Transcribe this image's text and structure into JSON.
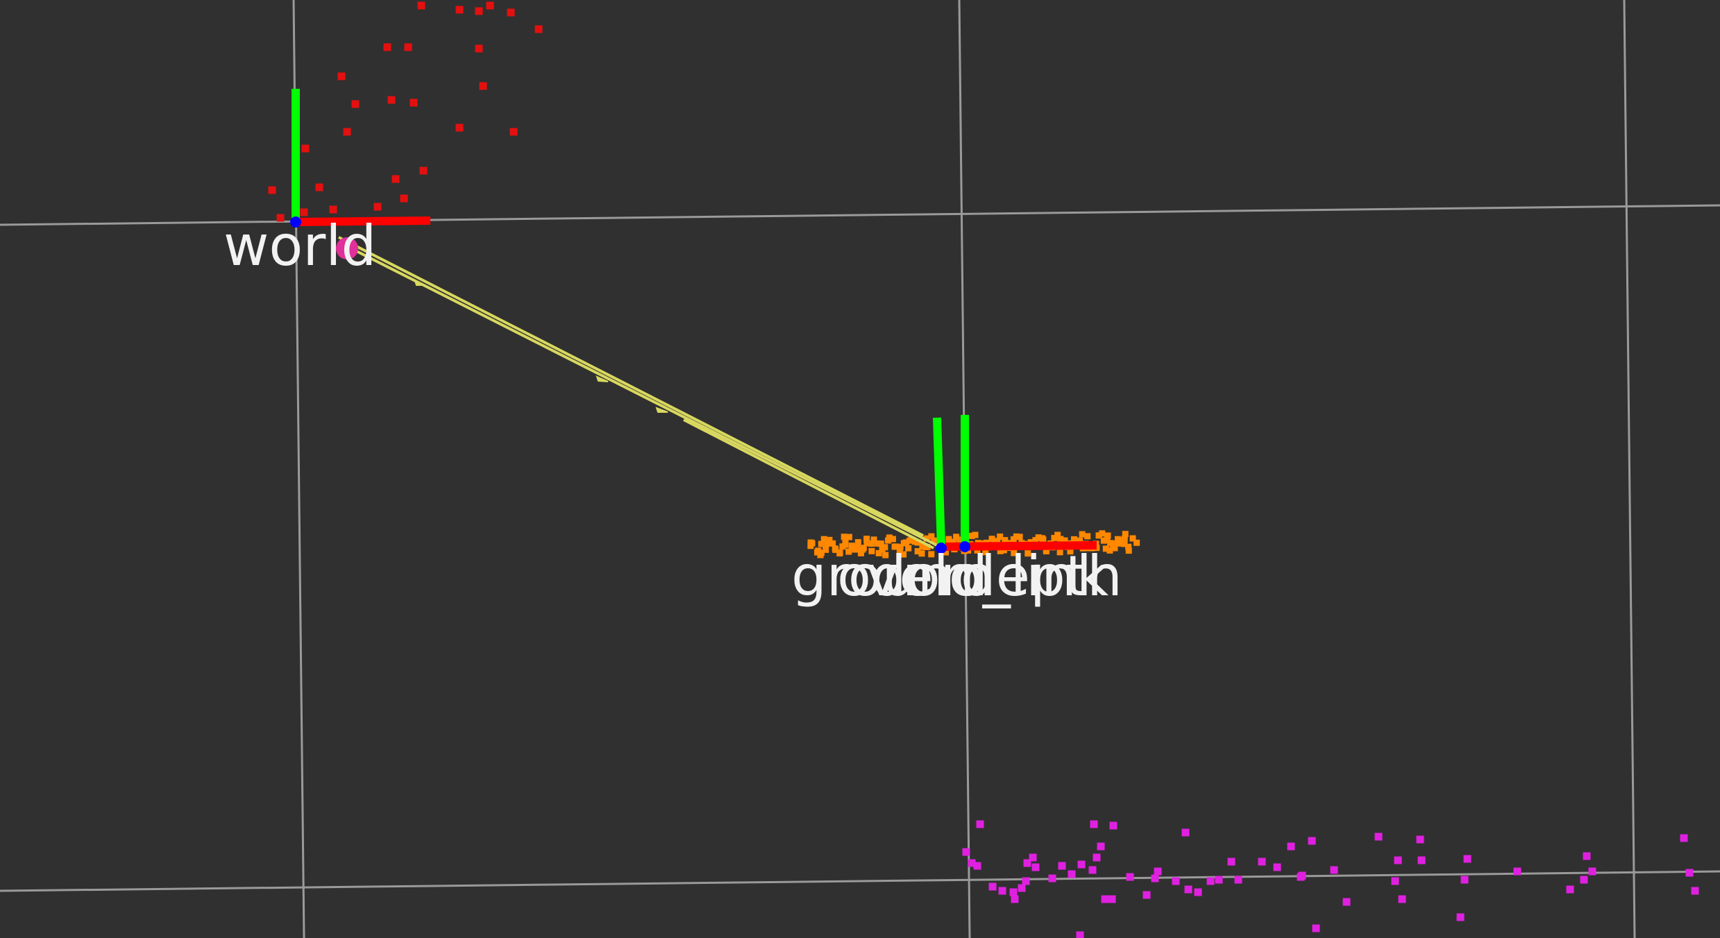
{
  "viewport": {
    "background": "#303030",
    "grid_color": "#9a9a9a",
    "axis_colors": {
      "x": "#ff0000",
      "y": "#00ff00",
      "z": "#0000ff"
    },
    "tf_link_color": "#d8d860"
  },
  "frames": [
    {
      "key": "world",
      "label": "world"
    },
    {
      "key": "ground",
      "label": "ground"
    },
    {
      "key": "odom",
      "label": "odom"
    },
    {
      "key": "velo_link",
      "label": "velo_link"
    },
    {
      "key": "depth",
      "label": "depth"
    }
  ],
  "point_clouds": [
    {
      "key": "red_cloud",
      "color": "#e41010"
    },
    {
      "key": "orange_cloud",
      "color": "#ff8800"
    },
    {
      "key": "magenta_cloud",
      "color": "#e020e0"
    }
  ]
}
